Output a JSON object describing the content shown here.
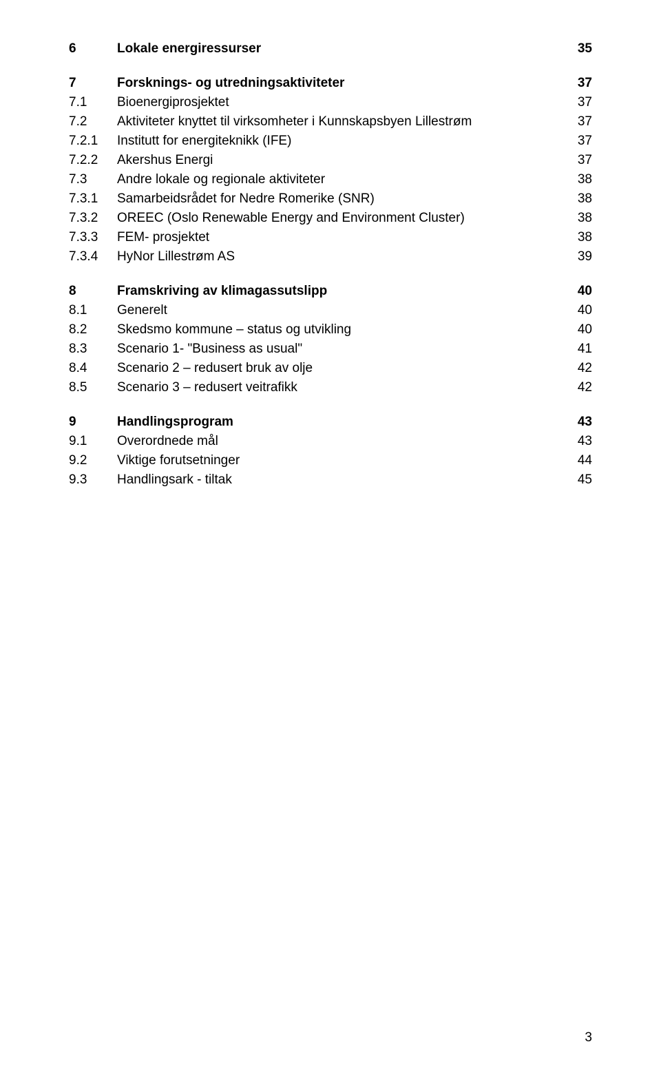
{
  "sections": [
    {
      "bold": true,
      "num": "6",
      "title": "Lokale energiressurser",
      "page": "35",
      "spaceAfter": true
    },
    {
      "bold": true,
      "num": "7",
      "title": "Forsknings- og utredningsaktiviteter",
      "page": "37"
    },
    {
      "bold": false,
      "num": "7.1",
      "title": "Bioenergiprosjektet",
      "page": "37"
    },
    {
      "bold": false,
      "num": "7.2",
      "title": "Aktiviteter knyttet til virksomheter i Kunnskapsbyen Lillestrøm",
      "page": "37"
    },
    {
      "bold": false,
      "num": "7.2.1",
      "title": "Institutt for energiteknikk (IFE)",
      "page": "37"
    },
    {
      "bold": false,
      "num": "7.2.2",
      "title": "Akershus Energi",
      "page": "37"
    },
    {
      "bold": false,
      "num": "7.3",
      "title": "Andre lokale og regionale aktiviteter",
      "page": "38"
    },
    {
      "bold": false,
      "num": "7.3.1",
      "title": "Samarbeidsrådet for Nedre Romerike (SNR)",
      "page": "38"
    },
    {
      "bold": false,
      "num": "7.3.2",
      "title": "OREEC (Oslo Renewable Energy and Environment Cluster)",
      "page": "38"
    },
    {
      "bold": false,
      "num": "7.3.3",
      "title": "FEM- prosjektet",
      "page": "38"
    },
    {
      "bold": false,
      "num": "7.3.4",
      "title": "HyNor Lillestrøm AS",
      "page": "39",
      "spaceAfter": true
    },
    {
      "bold": true,
      "num": "8",
      "title": "Framskriving av klimagassutslipp",
      "page": "40"
    },
    {
      "bold": false,
      "num": "8.1",
      "title": "Generelt",
      "page": "40"
    },
    {
      "bold": false,
      "num": "8.2",
      "title": "Skedsmo kommune – status og utvikling",
      "page": "40"
    },
    {
      "bold": false,
      "num": "8.3",
      "title": "Scenario 1- \"Business as usual\"",
      "page": "41"
    },
    {
      "bold": false,
      "num": "8.4",
      "title": "Scenario 2 – redusert bruk av olje",
      "page": "42"
    },
    {
      "bold": false,
      "num": "8.5",
      "title": "Scenario 3 – redusert veitrafikk",
      "page": "42",
      "spaceAfter": true
    },
    {
      "bold": true,
      "num": "9",
      "title": "Handlingsprogram",
      "page": "43"
    },
    {
      "bold": false,
      "num": "9.1",
      "title": "Overordnede mål",
      "page": "43"
    },
    {
      "bold": false,
      "num": "9.2",
      "title": "Viktige forutsetninger",
      "page": "44"
    },
    {
      "bold": false,
      "num": "9.3",
      "title": "Handlingsark - tiltak",
      "page": "45"
    }
  ],
  "pageNumber": "3"
}
